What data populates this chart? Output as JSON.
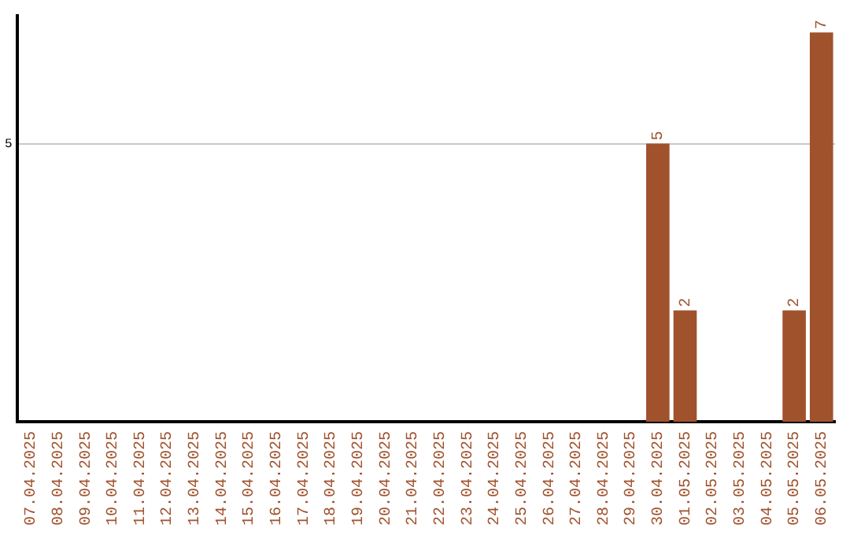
{
  "chart_data": {
    "type": "bar",
    "categories": [
      "07.04.2025",
      "08.04.2025",
      "09.04.2025",
      "10.04.2025",
      "11.04.2025",
      "12.04.2025",
      "13.04.2025",
      "14.04.2025",
      "15.04.2025",
      "16.04.2025",
      "17.04.2025",
      "18.04.2025",
      "19.04.2025",
      "20.04.2025",
      "21.04.2025",
      "22.04.2025",
      "23.04.2025",
      "24.04.2025",
      "25.04.2025",
      "26.04.2025",
      "27.04.2025",
      "28.04.2025",
      "29.04.2025",
      "30.04.2025",
      "01.05.2025",
      "02.05.2025",
      "03.05.2025",
      "04.05.2025",
      "05.05.2025",
      "06.05.2025"
    ],
    "values": [
      null,
      null,
      null,
      null,
      null,
      null,
      null,
      null,
      null,
      null,
      null,
      null,
      null,
      null,
      null,
      null,
      null,
      null,
      null,
      null,
      null,
      null,
      null,
      5,
      2,
      null,
      null,
      null,
      2,
      7
    ],
    "data_labels": true,
    "color": "#a0522d",
    "ylim": [
      0,
      7.3
    ],
    "yticks": [
      5
    ],
    "grid": "y",
    "legend": false
  }
}
